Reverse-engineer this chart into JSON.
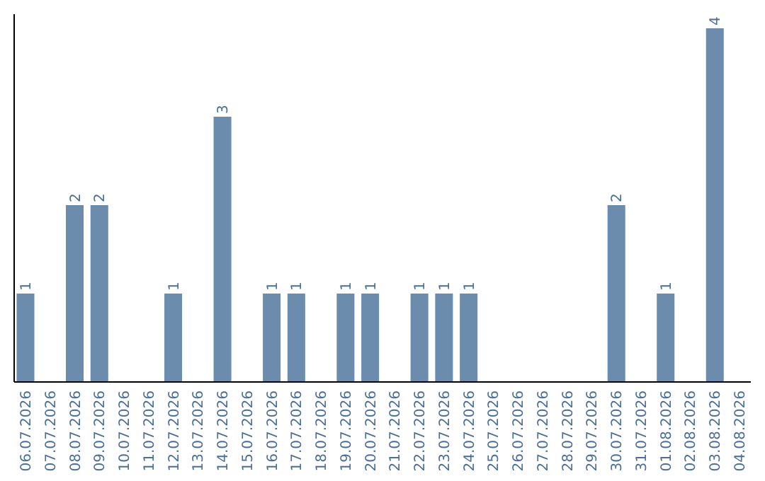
{
  "chart_data": {
    "type": "bar",
    "categories": [
      "06.07.2026",
      "07.07.2026",
      "08.07.2026",
      "09.07.2026",
      "10.07.2026",
      "11.07.2026",
      "12.07.2026",
      "13.07.2026",
      "14.07.2026",
      "15.07.2026",
      "16.07.2026",
      "17.07.2026",
      "18.07.2026",
      "19.07.2026",
      "20.07.2026",
      "21.07.2026",
      "22.07.2026",
      "23.07.2026",
      "24.07.2026",
      "25.07.2026",
      "26.07.2026",
      "27.07.2026",
      "28.07.2026",
      "29.07.2026",
      "30.07.2026",
      "31.07.2026",
      "01.08.2026",
      "02.08.2026",
      "03.08.2026",
      "04.08.2026"
    ],
    "values": [
      1,
      0,
      2,
      2,
      0,
      0,
      1,
      0,
      3,
      0,
      1,
      1,
      0,
      1,
      1,
      0,
      1,
      1,
      1,
      0,
      0,
      0,
      0,
      0,
      2,
      0,
      1,
      0,
      4,
      0
    ],
    "value_labels": [
      "1",
      null,
      "2",
      "2",
      null,
      null,
      "1",
      null,
      "3",
      null,
      "1",
      "1",
      null,
      "1",
      "1",
      null,
      "1",
      "1",
      "1",
      null,
      null,
      null,
      null,
      null,
      "2",
      null,
      "1",
      null,
      "4",
      null
    ],
    "color": "#6b8cac"
  }
}
